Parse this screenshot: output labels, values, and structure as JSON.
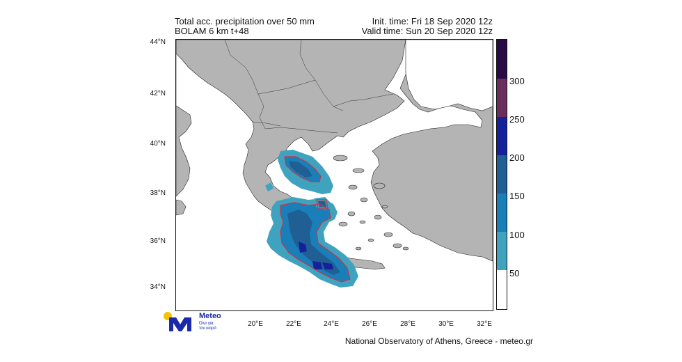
{
  "header": {
    "title_line1": "Total acc. precipitation over 50 mm",
    "title_line2": "BOLAM 6 km t+48",
    "init_time": "Init. time: Fri 18 Sep 2020 12z",
    "valid_time": "Valid time: Sun 20 Sep 2020 12z"
  },
  "axes": {
    "lat_labels": [
      "44°N",
      "42°N",
      "40°N",
      "38°N",
      "36°N",
      "34°N"
    ],
    "lon_labels": [
      "20°E",
      "22°E",
      "24°E",
      "26°E",
      "28°E",
      "30°E",
      "32°E"
    ]
  },
  "colorbar": {
    "labels": [
      "300",
      "250",
      "200",
      "150",
      "100",
      "50"
    ],
    "colors": [
      "#2a0a45",
      "#6b2d5c",
      "#14219a",
      "#1f5f94",
      "#1a7fb8",
      "#3fa3bf",
      "#ffffff"
    ]
  },
  "logo": {
    "name": "Meteo",
    "tagline_1": "Όλα για",
    "tagline_2": "τον καιρό"
  },
  "footer": {
    "credit": "National Observatory of Athens, Greece - meteo.gr"
  },
  "colors": {
    "land": "#b4b4b4",
    "sea": "#ffffff",
    "contour": "#cc3344"
  }
}
